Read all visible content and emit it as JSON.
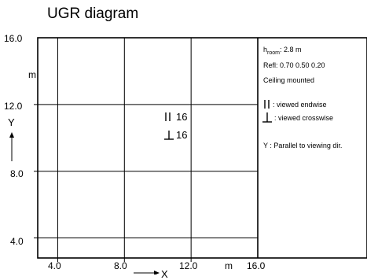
{
  "chart_data": {
    "type": "heatmap",
    "title": "UGR diagram",
    "xlabel": "X",
    "ylabel": "Y",
    "unit_label": "m",
    "xlim": [
      2.8,
      16.0
    ],
    "ylim": [
      2.8,
      16.0
    ],
    "x_ticks": [
      "4.0",
      "8.0",
      "12.0",
      "16.0"
    ],
    "y_ticks": [
      "16.0",
      "12.0",
      "8.0",
      "4.0"
    ],
    "x_gridlines": [
      4.0,
      8.0,
      12.0
    ],
    "y_gridlines": [
      4.0,
      8.0,
      12.0
    ],
    "values": [
      {
        "symbol": "II",
        "value": "16"
      },
      {
        "symbol": "⊥",
        "value": "16"
      }
    ],
    "legend": {
      "room_height_label": "h",
      "room_height_sub": "room",
      "room_height_value": ": 2.8 m",
      "reflectances": "Refl: 0.70 0.50 0.20",
      "mounting": "Ceiling mounted",
      "endwise_symbol": "II",
      "endwise_text": ": viewed endwise",
      "crosswise_symbol": "⊥",
      "crosswise_text": ": viewed crosswise",
      "parallel_text": "Y   : Parallel to viewing dir."
    },
    "grid": true
  }
}
